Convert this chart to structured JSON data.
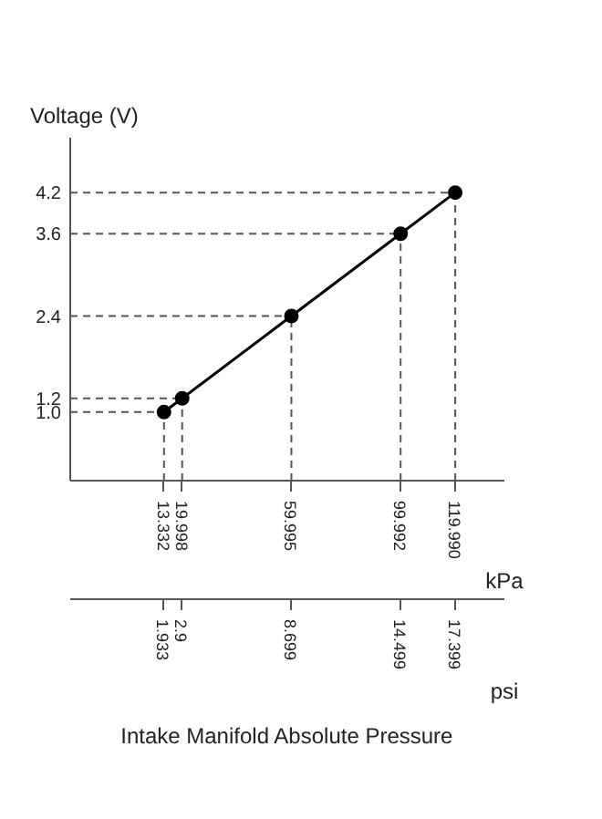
{
  "chart_data": {
    "type": "line",
    "title": "Intake Manifold Absolute Pressure",
    "ylabel": "Voltage (V)",
    "xlabel": "kPa",
    "x2label": "psi",
    "x": [
      13.332,
      19.998,
      59.995,
      99.992,
      119.99
    ],
    "series": [
      {
        "color": "#000000",
        "values": [
          1.0,
          1.2,
          2.4,
          3.6,
          4.2
        ]
      }
    ],
    "xlim": [
      -21,
      138
    ],
    "ylim": [
      0,
      5
    ],
    "x2lim": [
      -3,
      20
    ],
    "xticks": [
      13.332,
      19.998,
      59.995,
      99.992,
      {
        "value": 119.99,
        "label": "119.990"
      }
    ],
    "x2ticks": [
      1.933,
      2.9,
      8.699,
      14.499,
      17.399
    ],
    "yticks": [
      {
        "value": 1,
        "label": "1.0"
      },
      1.2,
      2.4,
      3.6,
      4.2
    ],
    "ref_lines": [
      {
        "axis": "y",
        "value": 1.0,
        "color": "#555555",
        "line_style": "dashed"
      },
      {
        "axis": "y",
        "value": 1.2,
        "color": "#555555",
        "line_style": "dashed"
      },
      {
        "axis": "y",
        "value": 2.4,
        "color": "#555555",
        "line_style": "dashed"
      },
      {
        "axis": "y",
        "value": 3.6,
        "color": "#555555",
        "line_style": "dashed"
      },
      {
        "axis": "y",
        "value": 4.2,
        "color": "#555555",
        "line_style": "dashed"
      },
      {
        "axis": "x",
        "value": 13.332,
        "color": "#555555",
        "line_style": "dashed"
      },
      {
        "axis": "x",
        "value": 19.998,
        "color": "#555555",
        "line_style": "dashed"
      },
      {
        "axis": "x",
        "value": 59.995,
        "color": "#555555",
        "line_style": "dashed"
      },
      {
        "axis": "x",
        "value": 99.992,
        "color": "#555555",
        "line_style": "dashed"
      },
      {
        "axis": "x",
        "value": 119.99,
        "color": "#555555",
        "line_style": "dashed"
      }
    ],
    "marker": "circle",
    "line_style": "solid",
    "grid": false
  }
}
